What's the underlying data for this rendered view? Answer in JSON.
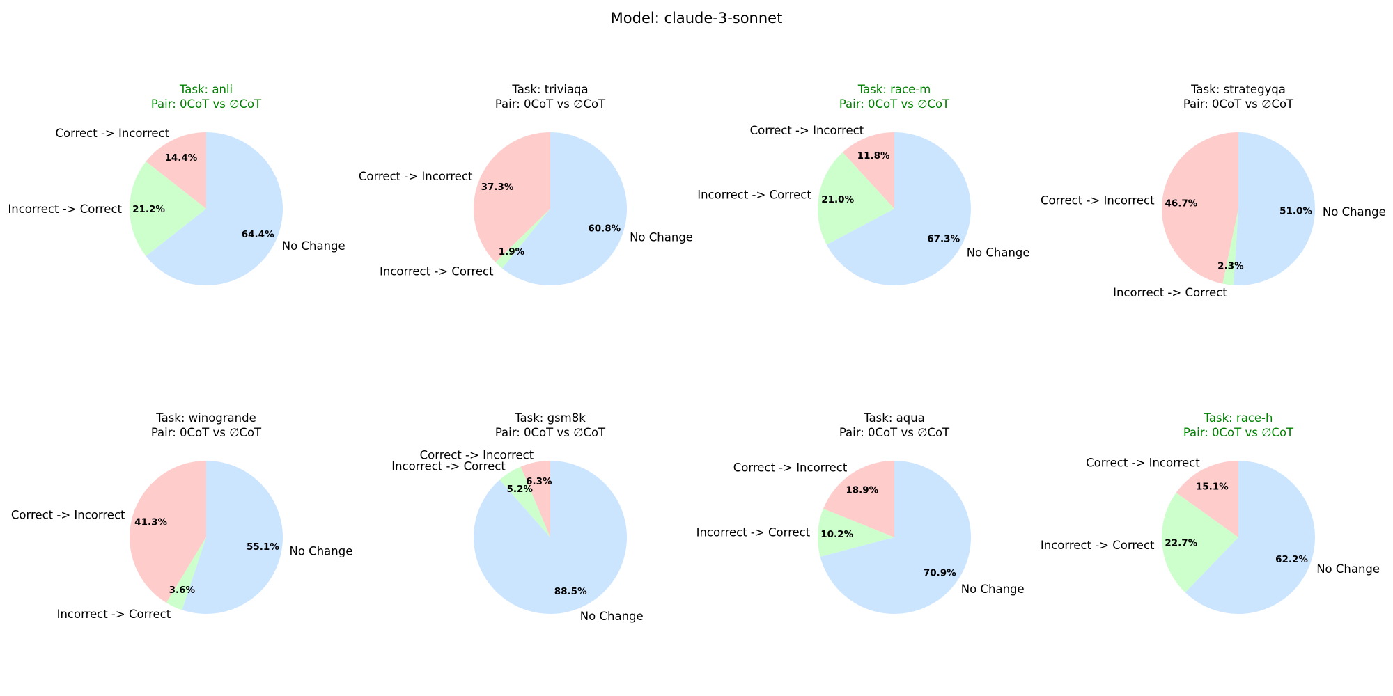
{
  "suptitle": "Model: claude-3-sonnet",
  "colors": {
    "correct_to_incorrect": "#ffcccc",
    "incorrect_to_correct": "#ccffcc",
    "no_change": "#cce5ff",
    "title_highlight": "#008000",
    "title_default": "#000000"
  },
  "chart_data": [
    {
      "type": "pie",
      "title": "Task: anli",
      "subtitle": "Pair: 0CoT vs ∅CoT",
      "title_color": "green",
      "labels": [
        "Correct -> Incorrect",
        "Incorrect -> Correct",
        "No Change"
      ],
      "values": [
        14.4,
        21.2,
        64.4
      ],
      "pct_labels": [
        "14.4%",
        "21.2%",
        "64.4%"
      ]
    },
    {
      "type": "pie",
      "title": "Task: triviaqa",
      "subtitle": "Pair: 0CoT vs ∅CoT",
      "title_color": "black",
      "labels": [
        "Correct -> Incorrect",
        "Incorrect -> Correct",
        "No Change"
      ],
      "values": [
        37.3,
        1.9,
        60.8
      ],
      "pct_labels": [
        "37.3%",
        "1.9%",
        "60.8%"
      ]
    },
    {
      "type": "pie",
      "title": "Task: race-m",
      "subtitle": "Pair: 0CoT vs ∅CoT",
      "title_color": "green",
      "labels": [
        "Correct -> Incorrect",
        "Incorrect -> Correct",
        "No Change"
      ],
      "values": [
        11.8,
        21.0,
        67.3
      ],
      "pct_labels": [
        "11.8%",
        "21.0%",
        "67.3%"
      ]
    },
    {
      "type": "pie",
      "title": "Task: strategyqa",
      "subtitle": "Pair: 0CoT vs ∅CoT",
      "title_color": "black",
      "labels": [
        "Correct -> Incorrect",
        "Incorrect -> Correct",
        "No Change"
      ],
      "values": [
        46.7,
        2.3,
        51.0
      ],
      "pct_labels": [
        "46.7%",
        "2.3%",
        "51.0%"
      ]
    },
    {
      "type": "pie",
      "title": "Task: winogrande",
      "subtitle": "Pair: 0CoT vs ∅CoT",
      "title_color": "black",
      "labels": [
        "Correct -> Incorrect",
        "Incorrect -> Correct",
        "No Change"
      ],
      "values": [
        41.3,
        3.6,
        55.1
      ],
      "pct_labels": [
        "41.3%",
        "3.6%",
        "55.1%"
      ]
    },
    {
      "type": "pie",
      "title": "Task: gsm8k",
      "subtitle": "Pair: 0CoT vs ∅CoT",
      "title_color": "black",
      "labels": [
        "Correct -> Incorrect",
        "Incorrect -> Correct",
        "No Change"
      ],
      "values": [
        6.3,
        5.2,
        88.5
      ],
      "pct_labels": [
        "6.3%",
        "5.2%",
        "88.5%"
      ]
    },
    {
      "type": "pie",
      "title": "Task: aqua",
      "subtitle": "Pair: 0CoT vs ∅CoT",
      "title_color": "black",
      "labels": [
        "Correct -> Incorrect",
        "Incorrect -> Correct",
        "No Change"
      ],
      "values": [
        18.9,
        10.2,
        70.9
      ],
      "pct_labels": [
        "18.9%",
        "10.2%",
        "70.9%"
      ]
    },
    {
      "type": "pie",
      "title": "Task: race-h",
      "subtitle": "Pair: 0CoT vs ∅CoT",
      "title_color": "green",
      "labels": [
        "Correct -> Incorrect",
        "Incorrect -> Correct",
        "No Change"
      ],
      "values": [
        15.1,
        22.7,
        62.2
      ],
      "pct_labels": [
        "15.1%",
        "22.7%",
        "62.2%"
      ]
    }
  ]
}
